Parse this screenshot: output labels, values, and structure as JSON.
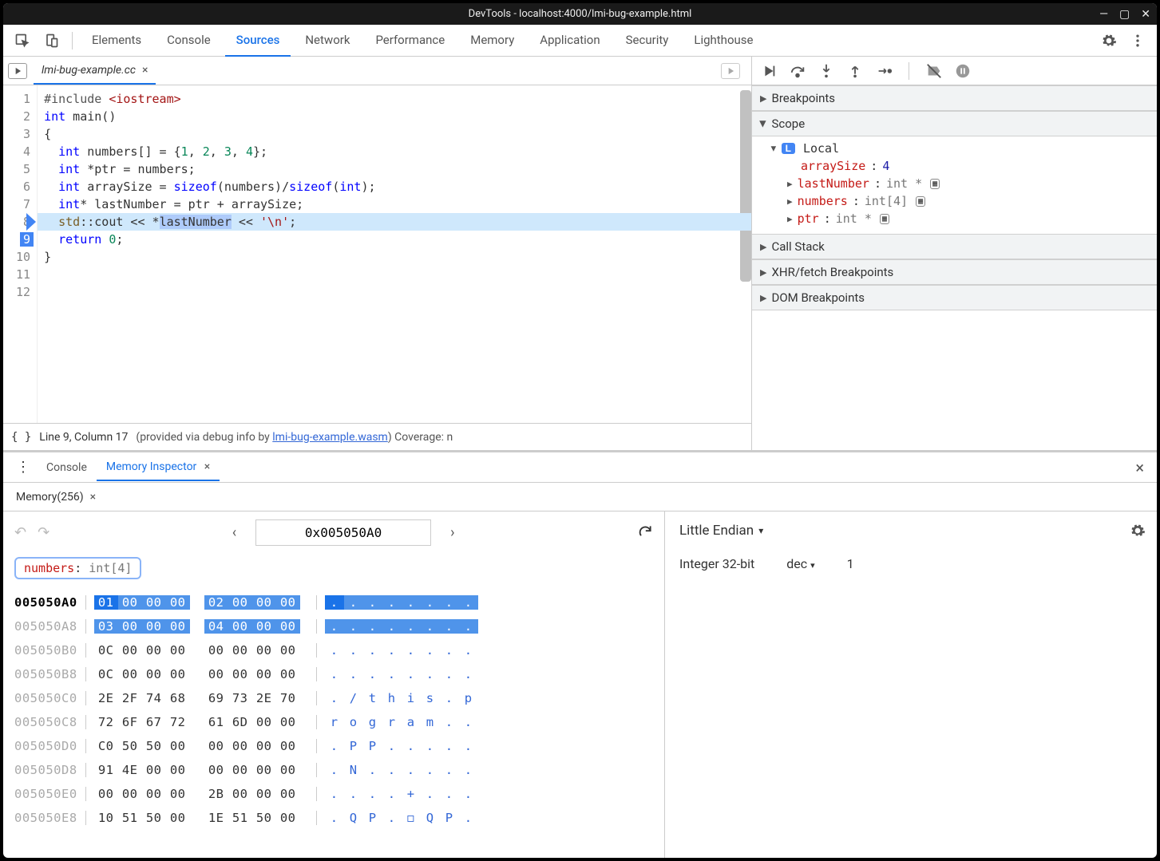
{
  "window": {
    "title": "DevTools - localhost:4000/lmi-bug-example.html"
  },
  "mainTabs": [
    "Elements",
    "Console",
    "Sources",
    "Network",
    "Performance",
    "Memory",
    "Application",
    "Security",
    "Lighthouse"
  ],
  "activeMainTab": "Sources",
  "file": {
    "name": "lmi-bug-example.cc"
  },
  "code": {
    "lines": 12,
    "currentLine": 9
  },
  "status": {
    "cursor": "Line 9, Column 17",
    "provided": "  (provided via debug info by ",
    "wasmFile": "lmi-bug-example.wasm",
    "coverage": ")  Coverage: n"
  },
  "panels": {
    "breakpoints": "Breakpoints",
    "scope": "Scope",
    "callstack": "Call Stack",
    "xhr": "XHR/fetch Breakpoints",
    "dom": "DOM Breakpoints"
  },
  "scope": {
    "local": "Local",
    "vars": [
      {
        "k": "arraySize",
        "sep": ": ",
        "v": "4",
        "expand": false,
        "color": "#1a1aa6"
      },
      {
        "k": "lastNumber",
        "sep": ": ",
        "v": "int *",
        "expand": true,
        "mem": true
      },
      {
        "k": "numbers",
        "sep": ": ",
        "v": "int[4]",
        "expand": true,
        "mem": true
      },
      {
        "k": "ptr",
        "sep": ": ",
        "v": "int *",
        "expand": true,
        "mem": true
      }
    ]
  },
  "drawer": {
    "tabs": [
      "Console",
      "Memory Inspector"
    ],
    "active": "Memory Inspector",
    "memTab": "Memory(256)"
  },
  "memory": {
    "address": "0x005050A0",
    "chip": {
      "k": "numbers",
      "sep": ": ",
      "t": "int[4]"
    },
    "rows": [
      {
        "addr": "005050A0",
        "bold": true,
        "hl": true,
        "b": [
          "01",
          "00",
          "00",
          "00",
          "02",
          "00",
          "00",
          "00"
        ],
        "a": [
          ".",
          ".",
          ".",
          ".",
          ".",
          ".",
          ".",
          "."
        ]
      },
      {
        "addr": "005050A8",
        "bold": false,
        "hl": true,
        "b": [
          "03",
          "00",
          "00",
          "00",
          "04",
          "00",
          "00",
          "00"
        ],
        "a": [
          ".",
          ".",
          ".",
          ".",
          ".",
          ".",
          ".",
          "."
        ]
      },
      {
        "addr": "005050B0",
        "bold": false,
        "hl": false,
        "b": [
          "0C",
          "00",
          "00",
          "00",
          "00",
          "00",
          "00",
          "00"
        ],
        "a": [
          ".",
          ".",
          ".",
          ".",
          ".",
          ".",
          ".",
          "."
        ]
      },
      {
        "addr": "005050B8",
        "bold": false,
        "hl": false,
        "b": [
          "0C",
          "00",
          "00",
          "00",
          "00",
          "00",
          "00",
          "00"
        ],
        "a": [
          ".",
          ".",
          ".",
          ".",
          ".",
          ".",
          ".",
          "."
        ]
      },
      {
        "addr": "005050C0",
        "bold": false,
        "hl": false,
        "b": [
          "2E",
          "2F",
          "74",
          "68",
          "69",
          "73",
          "2E",
          "70"
        ],
        "a": [
          ".",
          "/",
          "t",
          "h",
          "i",
          "s",
          ".",
          "p"
        ]
      },
      {
        "addr": "005050C8",
        "bold": false,
        "hl": false,
        "b": [
          "72",
          "6F",
          "67",
          "72",
          "61",
          "6D",
          "00",
          "00"
        ],
        "a": [
          "r",
          "o",
          "g",
          "r",
          "a",
          "m",
          ".",
          "."
        ]
      },
      {
        "addr": "005050D0",
        "bold": false,
        "hl": false,
        "b": [
          "C0",
          "50",
          "50",
          "00",
          "00",
          "00",
          "00",
          "00"
        ],
        "a": [
          ".",
          "P",
          "P",
          ".",
          ".",
          ".",
          ".",
          "."
        ]
      },
      {
        "addr": "005050D8",
        "bold": false,
        "hl": false,
        "b": [
          "91",
          "4E",
          "00",
          "00",
          "00",
          "00",
          "00",
          "00"
        ],
        "a": [
          ".",
          "N",
          ".",
          ".",
          ".",
          ".",
          ".",
          "."
        ]
      },
      {
        "addr": "005050E0",
        "bold": false,
        "hl": false,
        "b": [
          "00",
          "00",
          "00",
          "00",
          "2B",
          "00",
          "00",
          "00"
        ],
        "a": [
          ".",
          ".",
          ".",
          ".",
          "+",
          ".",
          ".",
          "."
        ]
      },
      {
        "addr": "005050E8",
        "bold": false,
        "hl": false,
        "b": [
          "10",
          "51",
          "50",
          "00",
          "1E",
          "51",
          "50",
          "00"
        ],
        "a": [
          ".",
          "Q",
          "P",
          ".",
          "◻",
          "Q",
          "P",
          "."
        ]
      }
    ]
  },
  "inspector": {
    "endian": "Little Endian",
    "type": "Integer 32-bit",
    "format": "dec",
    "value": "1"
  }
}
